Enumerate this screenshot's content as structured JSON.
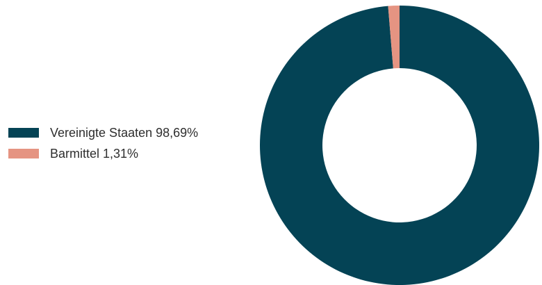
{
  "chart_data": {
    "type": "pie",
    "variant": "donut",
    "title": "",
    "slices": [
      {
        "label": "Vereinigte Staaten",
        "value": 98.69,
        "display": "98,69%",
        "color": "#044355"
      },
      {
        "label": "Barmittel",
        "value": 1.31,
        "display": "1,31%",
        "color": "#e59482"
      }
    ],
    "legend_position": "left",
    "start_angle": "12 o'clock",
    "direction": "clockwise"
  },
  "legend": {
    "items": [
      {
        "text": "Vereinigte Staaten 98,69%"
      },
      {
        "text": "Barmittel 1,31%"
      }
    ]
  }
}
